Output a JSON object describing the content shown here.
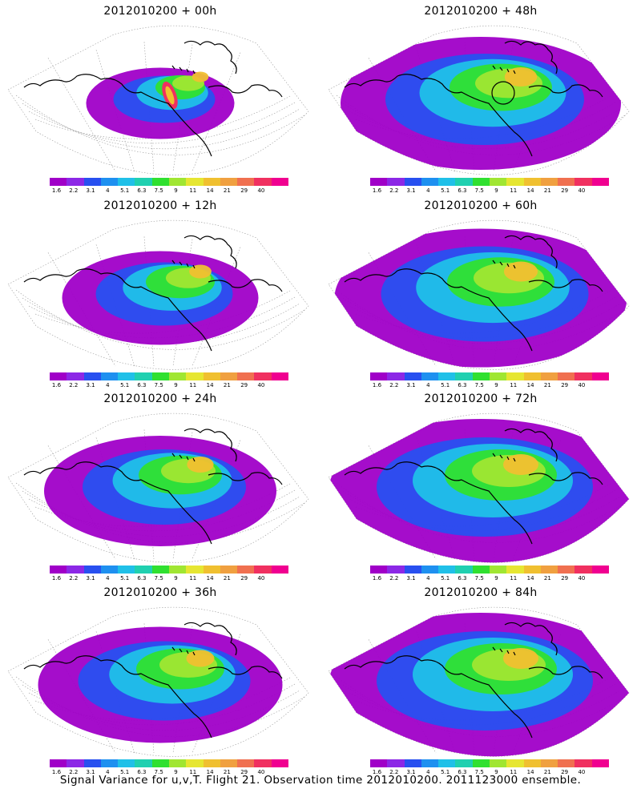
{
  "caption": "Signal Variance for u,v,T. Flight 21. Observation time 2012010200. 2011123000 ensemble.",
  "colorbar": {
    "labels": [
      "1.6",
      "2.2",
      "3.1",
      "4",
      "5.1",
      "6.3",
      "7.5",
      "9",
      "11",
      "14",
      "21",
      "29",
      "40"
    ],
    "colors": [
      "#a000c8",
      "#8c28e6",
      "#2850f0",
      "#1e90f0",
      "#20c0e8",
      "#20d0b0",
      "#30e030",
      "#a0e632",
      "#e6e632",
      "#f0c030",
      "#f0a040",
      "#f07050",
      "#f03060",
      "#f00090"
    ]
  },
  "panels": [
    {
      "title": "2012010200 + 00h"
    },
    {
      "title": "2012010200 + 48h"
    },
    {
      "title": "2012010200 + 12h"
    },
    {
      "title": "2012010200 + 60h"
    },
    {
      "title": "2012010200 + 24h"
    },
    {
      "title": "2012010200 + 72h"
    },
    {
      "title": "2012010200 + 36h"
    },
    {
      "title": "2012010200 + 84h"
    }
  ]
}
